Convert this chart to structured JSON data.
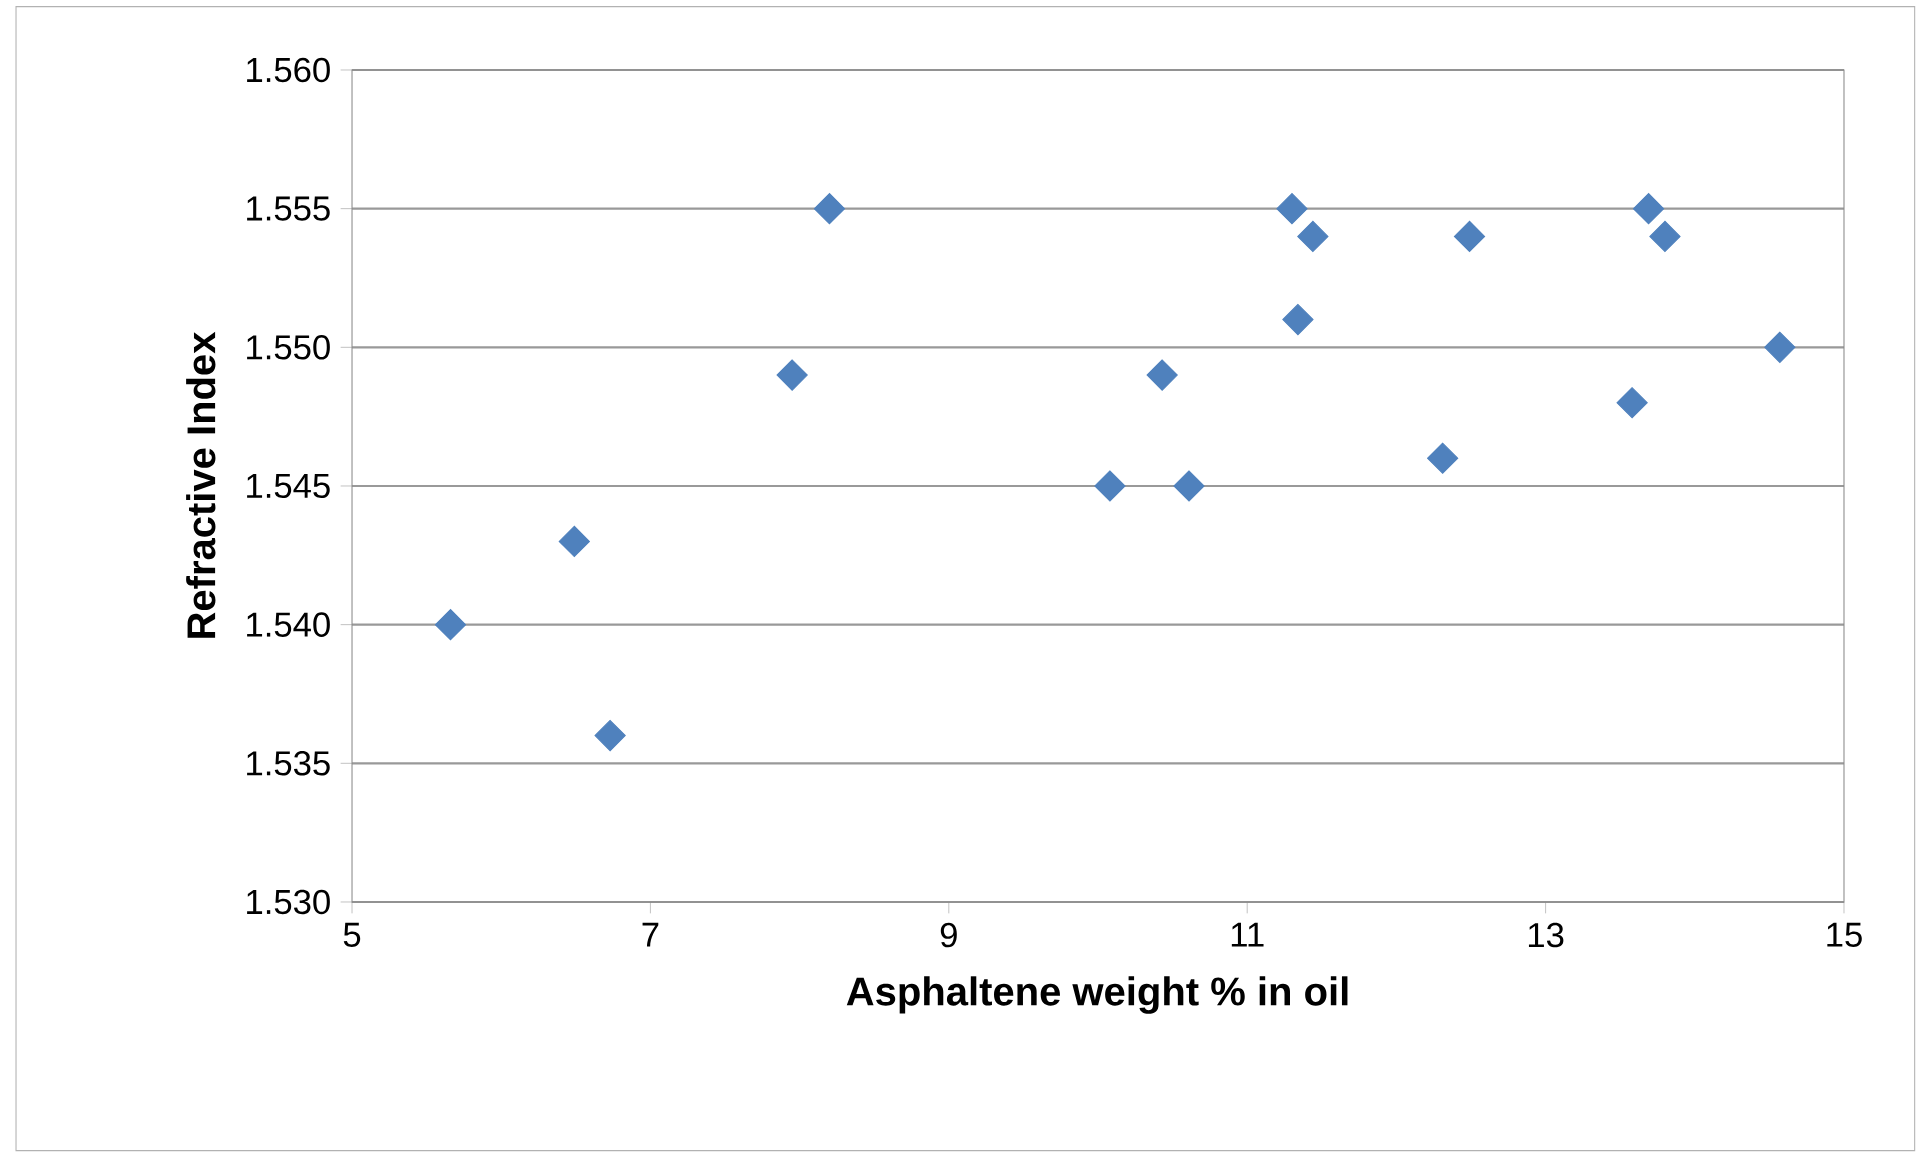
{
  "chart_data": {
    "type": "scatter",
    "xlabel": "Asphaltene weight % in oil",
    "ylabel": "Refractive Index",
    "x": [
      5.66,
      6.49,
      6.73,
      7.95,
      8.2,
      10.08,
      10.43,
      10.61,
      11.3,
      11.44,
      11.34,
      12.31,
      12.49,
      13.58,
      13.69,
      13.8,
      14.57
    ],
    "values": [
      1.54,
      1.543,
      1.536,
      1.549,
      1.555,
      1.545,
      1.549,
      1.545,
      1.555,
      1.554,
      1.551,
      1.546,
      1.554,
      1.548,
      1.555,
      1.554,
      1.55
    ],
    "color": "#4f81bd",
    "marker": "diamond",
    "grid": "y",
    "xlim": [
      5,
      15
    ],
    "xticks": [
      5,
      7,
      9,
      11,
      13,
      15
    ],
    "ylim": [
      1.53,
      1.56
    ],
    "yticks": [
      {
        "value": 1.53,
        "label": "1.530"
      },
      {
        "value": 1.535,
        "label": "1.535"
      },
      {
        "value": 1.54,
        "label": "1.540"
      },
      {
        "value": 1.545,
        "label": "1.545"
      },
      {
        "value": 1.55,
        "label": "1.550"
      },
      {
        "value": 1.555,
        "label": "1.555"
      },
      {
        "value": 1.56,
        "label": "1.560"
      }
    ]
  }
}
